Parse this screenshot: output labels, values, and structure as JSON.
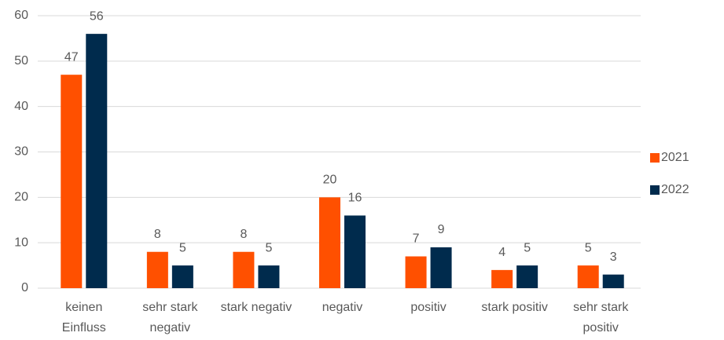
{
  "chart_data": {
    "type": "bar",
    "categories": [
      "keinen Einfluss",
      "sehr stark negativ",
      "stark negativ",
      "negativ",
      "positiv",
      "stark positiv",
      "sehr stark positiv"
    ],
    "series": [
      {
        "name": "2021",
        "color": "#ff5000",
        "values": [
          47,
          8,
          8,
          20,
          7,
          4,
          5
        ]
      },
      {
        "name": "2022",
        "color": "#002b4d",
        "values": [
          56,
          5,
          5,
          16,
          9,
          5,
          3
        ]
      }
    ],
    "ylim": [
      0,
      60
    ],
    "yticks": [
      0,
      10,
      20,
      30,
      40,
      50,
      60
    ],
    "grid": true,
    "legend": "right"
  }
}
